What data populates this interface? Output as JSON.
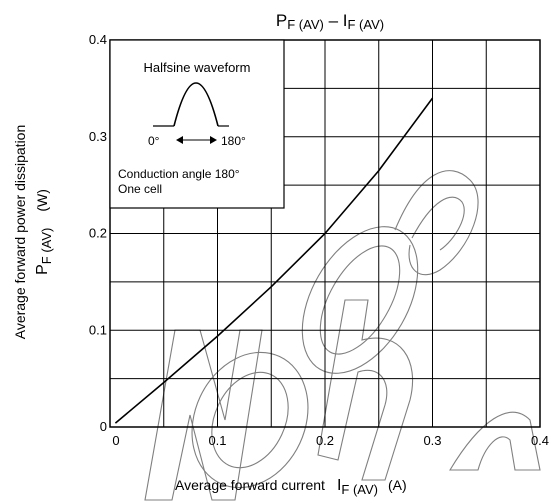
{
  "chart_data": {
    "type": "line",
    "title": {
      "main": "P",
      "main_sub": "F (AV)",
      "sep": " – ",
      "second": "I",
      "second_sub": "F (AV)"
    },
    "xlabel": {
      "text": "Average forward current",
      "sym": "I",
      "sub": "F (AV)",
      "unit": "(A)"
    },
    "ylabel": {
      "line1": "Average forward power dissipation",
      "sym": "P",
      "sub": "F (AV)",
      "unit": "(W)"
    },
    "xlim": [
      0,
      0.4
    ],
    "ylim": [
      0,
      0.4
    ],
    "x_ticks": [
      {
        "value": 0,
        "label": "0"
      },
      {
        "value": 0.1,
        "label": "0.1"
      },
      {
        "value": 0.2,
        "label": "0.2"
      },
      {
        "value": 0.3,
        "label": "0.3"
      },
      {
        "value": 0.4,
        "label": "0.4"
      }
    ],
    "y_ticks": [
      {
        "value": 0,
        "label": "0"
      },
      {
        "value": 0.1,
        "label": "0.1"
      },
      {
        "value": 0.2,
        "label": "0.2"
      },
      {
        "value": 0.3,
        "label": "0.3"
      },
      {
        "value": 0.4,
        "label": "0.4"
      }
    ],
    "grid": true,
    "grid_divisions": {
      "x": 8,
      "y": 8
    },
    "series": [
      {
        "points": [
          [
            0.005,
            0.004
          ],
          [
            0.05,
            0.046
          ],
          [
            0.1,
            0.094
          ],
          [
            0.15,
            0.145
          ],
          [
            0.2,
            0.2
          ],
          [
            0.25,
            0.265
          ],
          [
            0.3,
            0.34
          ]
        ],
        "color": "#000000"
      }
    ],
    "inset": {
      "title": "Halfsine waveform",
      "start_label": "0°",
      "end_label": "180°",
      "line1": "Conduction angle 180°",
      "line2": "One cell"
    },
    "watermark": "Not Recommended"
  }
}
